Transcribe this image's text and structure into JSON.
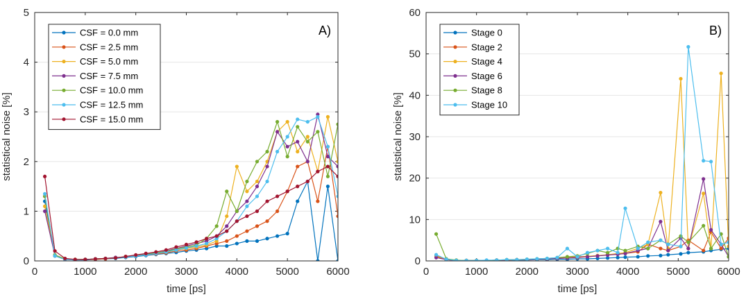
{
  "chart_data": [
    {
      "type": "line",
      "panel_label": "A)",
      "xlabel": "time [ps]",
      "ylabel": "statistical noise [%]",
      "xlim": [
        0,
        6000
      ],
      "ylim": [
        0,
        5
      ],
      "xticks": [
        "0",
        "1000",
        "2000",
        "3000",
        "4000",
        "5000",
        "6000"
      ],
      "yticks": [
        "0",
        "1",
        "2",
        "3",
        "4",
        "5"
      ],
      "grid": "horizontal",
      "legend_position": "top-left",
      "x": [
        200,
        400,
        600,
        800,
        1000,
        1200,
        1400,
        1600,
        1800,
        2000,
        2200,
        2400,
        2600,
        2800,
        3000,
        3200,
        3400,
        3600,
        3800,
        4000,
        4200,
        4400,
        4600,
        4800,
        5000,
        5200,
        5400,
        5600,
        5800,
        6000
      ],
      "series": [
        {
          "name": "CSF = 0.0 mm",
          "color": "#0072BD",
          "values": [
            1.2,
            0.1,
            0.03,
            0.02,
            0.02,
            0.03,
            0.04,
            0.05,
            0.07,
            0.09,
            0.11,
            0.13,
            0.15,
            0.17,
            0.2,
            0.22,
            0.25,
            0.3,
            0.3,
            0.35,
            0.4,
            0.4,
            0.45,
            0.5,
            0.55,
            1.2,
            1.6,
            0.0,
            1.5,
            0.0
          ]
        },
        {
          "name": "CSF = 2.5 mm",
          "color": "#D95319",
          "values": [
            1.3,
            0.1,
            0.03,
            0.02,
            0.03,
            0.03,
            0.04,
            0.06,
            0.08,
            0.1,
            0.12,
            0.14,
            0.16,
            0.2,
            0.22,
            0.25,
            0.3,
            0.35,
            0.4,
            0.5,
            0.6,
            0.7,
            0.8,
            1.0,
            1.4,
            1.9,
            2.0,
            1.2,
            2.3,
            0.9
          ]
        },
        {
          "name": "CSF = 5.0 mm",
          "color": "#EDB120",
          "values": [
            1.1,
            0.12,
            0.04,
            0.03,
            0.03,
            0.04,
            0.05,
            0.06,
            0.09,
            0.11,
            0.13,
            0.15,
            0.18,
            0.22,
            0.25,
            0.28,
            0.32,
            0.4,
            0.9,
            1.9,
            1.4,
            1.6,
            2.0,
            2.6,
            2.8,
            2.2,
            2.5,
            1.8,
            2.9,
            2.0
          ]
        },
        {
          "name": "CSF = 7.5 mm",
          "color": "#7E2F8E",
          "values": [
            1.0,
            0.11,
            0.03,
            0.02,
            0.03,
            0.04,
            0.05,
            0.07,
            0.08,
            0.1,
            0.14,
            0.16,
            0.2,
            0.25,
            0.3,
            0.35,
            0.4,
            0.5,
            0.7,
            1.0,
            1.2,
            1.5,
            1.9,
            2.6,
            2.3,
            2.4,
            2.0,
            2.95,
            2.1,
            1.9
          ]
        },
        {
          "name": "CSF = 10.0 mm",
          "color": "#77AC30",
          "values": [
            1.3,
            0.12,
            0.04,
            0.03,
            0.03,
            0.04,
            0.05,
            0.06,
            0.08,
            0.1,
            0.13,
            0.16,
            0.19,
            0.24,
            0.28,
            0.32,
            0.45,
            0.7,
            1.4,
            1.0,
            1.6,
            2.0,
            2.2,
            2.8,
            2.1,
            2.7,
            2.4,
            2.6,
            1.7,
            2.75
          ]
        },
        {
          "name": "CSF = 12.5 mm",
          "color": "#4DBEEE",
          "values": [
            1.35,
            0.1,
            0.03,
            0.02,
            0.03,
            0.04,
            0.05,
            0.06,
            0.08,
            0.1,
            0.12,
            0.15,
            0.18,
            0.22,
            0.26,
            0.3,
            0.35,
            0.45,
            0.6,
            0.8,
            1.1,
            1.3,
            1.6,
            2.2,
            2.5,
            2.85,
            2.8,
            2.9,
            2.3,
            1.3
          ]
        },
        {
          "name": "CSF = 15.0 mm",
          "color": "#A2142F",
          "values": [
            1.7,
            0.2,
            0.05,
            0.03,
            0.03,
            0.04,
            0.05,
            0.06,
            0.09,
            0.12,
            0.15,
            0.18,
            0.22,
            0.28,
            0.33,
            0.38,
            0.45,
            0.5,
            0.6,
            0.8,
            0.9,
            1.0,
            1.2,
            1.3,
            1.4,
            1.5,
            1.6,
            1.8,
            1.9,
            1.7
          ]
        }
      ]
    },
    {
      "type": "line",
      "panel_label": "B)",
      "xlabel": "time [ps]",
      "ylabel": "statistical noise [%]",
      "xlim": [
        0,
        6000
      ],
      "ylim": [
        0,
        60
      ],
      "xticks": [
        "0",
        "1000",
        "2000",
        "3000",
        "4000",
        "5000",
        "6000"
      ],
      "yticks": [
        "0",
        "10",
        "20",
        "30",
        "40",
        "50",
        "60"
      ],
      "grid": "horizontal",
      "legend_position": "top-left",
      "x": [
        200,
        400,
        600,
        800,
        1000,
        1200,
        1400,
        1600,
        1800,
        2000,
        2200,
        2400,
        2600,
        2800,
        3000,
        3200,
        3400,
        3600,
        3800,
        3950,
        4200,
        4400,
        4650,
        4800,
        5050,
        5200,
        5500,
        5650,
        5850,
        6000
      ],
      "series": [
        {
          "name": "Stage 0",
          "color": "#0072BD",
          "values": [
            1.0,
            0.3,
            0.1,
            0.1,
            0.1,
            0.1,
            0.1,
            0.2,
            0.2,
            0.2,
            0.3,
            0.3,
            0.4,
            0.4,
            0.5,
            0.5,
            0.6,
            0.7,
            0.8,
            0.9,
            1.0,
            1.2,
            1.3,
            1.5,
            1.7,
            2.0,
            2.2,
            2.5,
            2.8,
            3.0
          ]
        },
        {
          "name": "Stage 2",
          "color": "#D95319",
          "values": [
            1.2,
            0.4,
            0.1,
            0.1,
            0.1,
            0.1,
            0.2,
            0.2,
            0.3,
            0.3,
            0.4,
            0.5,
            0.6,
            0.7,
            0.8,
            1.0,
            1.2,
            1.5,
            1.6,
            1.8,
            2.2,
            4.0,
            3.0,
            2.5,
            3.5,
            5.0,
            2.5,
            7.0,
            3.0,
            5.5
          ]
        },
        {
          "name": "Stage 4",
          "color": "#EDB120",
          "values": [
            1.0,
            0.3,
            0.1,
            0.1,
            0.1,
            0.1,
            0.2,
            0.2,
            0.3,
            0.3,
            0.4,
            0.5,
            0.6,
            0.8,
            1.0,
            1.1,
            1.3,
            1.5,
            1.8,
            2.0,
            3.0,
            4.0,
            16.5,
            3.0,
            44.0,
            3.0,
            16.3,
            3.0,
            45.3,
            3.5
          ]
        },
        {
          "name": "Stage 6",
          "color": "#7E2F8E",
          "values": [
            0.8,
            0.3,
            0.1,
            0.1,
            0.1,
            0.1,
            0.2,
            0.2,
            0.3,
            0.3,
            0.4,
            0.5,
            0.6,
            0.7,
            0.9,
            1.0,
            1.2,
            1.4,
            1.6,
            1.8,
            2.5,
            3.0,
            9.5,
            2.5,
            5.5,
            3.0,
            19.8,
            7.5,
            4.0,
            1.0
          ]
        },
        {
          "name": "Stage 8",
          "color": "#77AC30",
          "values": [
            6.5,
            0.5,
            0.2,
            0.1,
            0.1,
            0.1,
            0.2,
            0.3,
            0.3,
            0.4,
            0.5,
            0.6,
            0.8,
            1.0,
            1.2,
            1.8,
            2.5,
            2.0,
            3.0,
            2.5,
            3.5,
            3.0,
            5.0,
            4.0,
            6.0,
            4.5,
            8.5,
            3.0,
            6.5,
            1.0
          ]
        },
        {
          "name": "Stage 10",
          "color": "#4DBEEE",
          "values": [
            1.5,
            0.4,
            0.1,
            0.1,
            0.1,
            0.2,
            0.2,
            0.3,
            0.3,
            0.4,
            0.5,
            0.6,
            0.8,
            3.0,
            1.0,
            2.0,
            2.5,
            3.0,
            2.0,
            12.7,
            3.0,
            4.5,
            5.0,
            4.0,
            3.5,
            51.7,
            24.2,
            24.0,
            4.0,
            4.5
          ]
        }
      ]
    }
  ]
}
